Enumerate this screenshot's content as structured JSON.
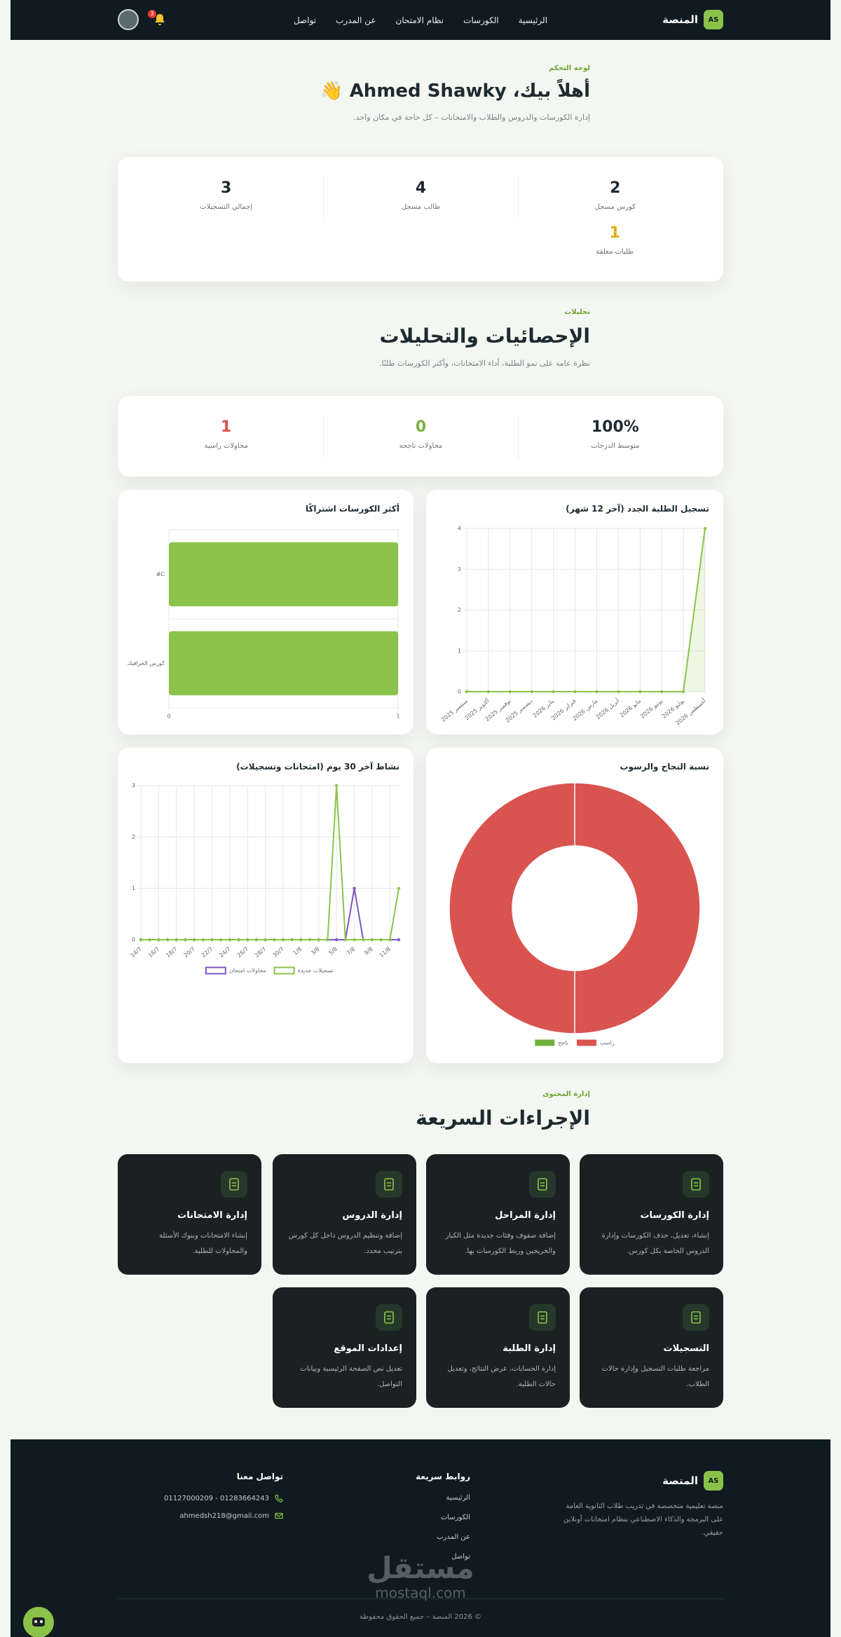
{
  "nav": {
    "brand": "المنصة",
    "logo": "AS",
    "links": [
      "الرئيسية",
      "الكورسات",
      "نظام الامتحان",
      "عن المدرب",
      "تواصل"
    ],
    "badge": "3"
  },
  "hero": {
    "eyebrow": "لوحة التحكم",
    "title": "أهلاً بيك، Ahmed Shawky 👋",
    "subtitle": "إدارة الكورسات والدروس والطلاب والامتحانات – كل حاجة في مكان واحد."
  },
  "stats": [
    {
      "value": "2",
      "label": "كورس مسجل"
    },
    {
      "value": "4",
      "label": "طالب مسجل"
    },
    {
      "value": "3",
      "label": "إجمالي التسجيلات"
    },
    {
      "value": "1",
      "label": "طلبات معلقة"
    }
  ],
  "analytics": {
    "eyebrow": "تحليلات",
    "title": "الإحصائيات والتحليلات",
    "subtitle": "نظرة عامة على نمو الطلبة، أداء الامتحانات، وأكثر الكورسات طلبًا.",
    "stats": [
      {
        "value": "100%",
        "label": "متوسط الدرجات"
      },
      {
        "value": "0",
        "label": "محاولات ناجحة"
      },
      {
        "value": "1",
        "label": "محاولات راسبة"
      }
    ]
  },
  "chart_data": [
    {
      "type": "line",
      "title": "تسجيل الطلبة الجدد (آخر 12 شهر)",
      "categories": [
        "سبتمبر 2025",
        "أكتوبر 2025",
        "نوفمبر 2025",
        "ديسمبر 2025",
        "يناير 2026",
        "فبراير 2026",
        "مارس 2026",
        "أبريل 2026",
        "مايو 2026",
        "يونيو 2026",
        "يوليو 2026",
        "أغسطس 2026"
      ],
      "values": [
        0,
        0,
        0,
        0,
        0,
        0,
        0,
        0,
        0,
        0,
        0,
        4
      ],
      "color": "#8bc34a",
      "area": true,
      "ylim": [
        0,
        4
      ],
      "yticks": [
        0,
        1,
        2,
        3,
        4
      ],
      "grid": true
    },
    {
      "type": "hbar",
      "title": "أكثر الكورسات اشتراكًا",
      "categories": [
        "#C",
        "كورس الجرافيك"
      ],
      "values": [
        1,
        1
      ],
      "color": "#8bc34a",
      "xlim": [
        0,
        1
      ],
      "xticks": [
        0,
        1
      ],
      "grid": true
    },
    {
      "type": "line",
      "title": "نشاط آخر 30 يوم (امتحانات وتسجيلات)",
      "categories": [
        "14/7",
        null,
        "16/7",
        null,
        "18/7",
        null,
        "20/7",
        null,
        "22/7",
        null,
        "24/7",
        null,
        "26/7",
        null,
        "28/7",
        null,
        "30/7",
        null,
        "1/8",
        null,
        "3/8",
        null,
        "5/8",
        null,
        "7/8",
        null,
        "9/8",
        null,
        "11/8",
        null
      ],
      "series": [
        {
          "name": "محاولات امتحان",
          "color": "#7e57c2",
          "values": [
            0,
            0,
            0,
            0,
            0,
            0,
            0,
            0,
            0,
            0,
            0,
            0,
            0,
            0,
            0,
            0,
            0,
            0,
            0,
            0,
            0,
            0,
            0,
            0,
            1,
            0,
            0,
            0,
            0,
            0
          ]
        },
        {
          "name": "تسجيلات جديدة",
          "color": "#8bc34a",
          "values": [
            0,
            0,
            0,
            0,
            0,
            0,
            0,
            0,
            0,
            0,
            0,
            0,
            0,
            0,
            0,
            0,
            0,
            0,
            0,
            0,
            0,
            0,
            3,
            0,
            0,
            0,
            0,
            0,
            0,
            1
          ]
        }
      ],
      "ylim": [
        0,
        3
      ],
      "yticks": [
        0,
        1,
        2,
        3
      ],
      "grid": true
    },
    {
      "type": "doughnut",
      "title": "نسبة النجاح والرسوب",
      "categories": [
        "ناجح",
        "راسب"
      ],
      "values": [
        0,
        1
      ],
      "colors": [
        "#6fb03a",
        "#d9534f"
      ]
    }
  ],
  "content": {
    "eyebrow": "إدارة المحتوى",
    "title": "الإجراءات السريعة",
    "cards": [
      {
        "title": "إدارة الكورسات",
        "text": "إنشاء، تعديل، حذف الكورسات وإدارة الدروس الخاصة بكل كورس."
      },
      {
        "title": "إدارة المراحل",
        "text": "إضافة صفوف وفئات جديدة مثل الكبار والخريجين وربط الكورسات بها."
      },
      {
        "title": "إدارة الدروس",
        "text": "إضافة وتنظيم الدروس داخل كل كورس بترتيب محدد."
      },
      {
        "title": "إدارة الامتحانات",
        "text": "إنشاء الامتحانات وبنوك الأسئلة والمحاولات للطلبة."
      },
      {
        "title": "التسجيلات",
        "text": "مراجعة طلبات التسجيل وإدارة حالات الطلاب."
      },
      {
        "title": "إدارة الطلبة",
        "text": "إدارة الحسابات، عرض النتائج، وتعديل حالات الطلبة."
      },
      {
        "title": "إعدادات الموقع",
        "text": "تعديل نص الصفحة الرئيسية وبيانات التواصل."
      }
    ]
  },
  "footer": {
    "brand": "المنصة",
    "logo": "AS",
    "description": "منصة تعليمية متخصصة في تدريب طلاب الثانوية العامة على البرمجة والذكاء الاصطناعي بنظام امتحانات أونلاين حقيقي.",
    "links_title": "روابط سريعة",
    "links": [
      "الرئيسية",
      "الكورسات",
      "عن المدرب",
      "تواصل"
    ],
    "contact_title": "تواصل معنا",
    "phone": "01283664243 - 01127000209",
    "email": "ahmedsh218@gmail.com",
    "copyright": "© 2026 المنصة – جميع الحقوق محفوظة"
  },
  "watermark": {
    "arabic": "مستقل",
    "latin": "mostaql.com"
  }
}
